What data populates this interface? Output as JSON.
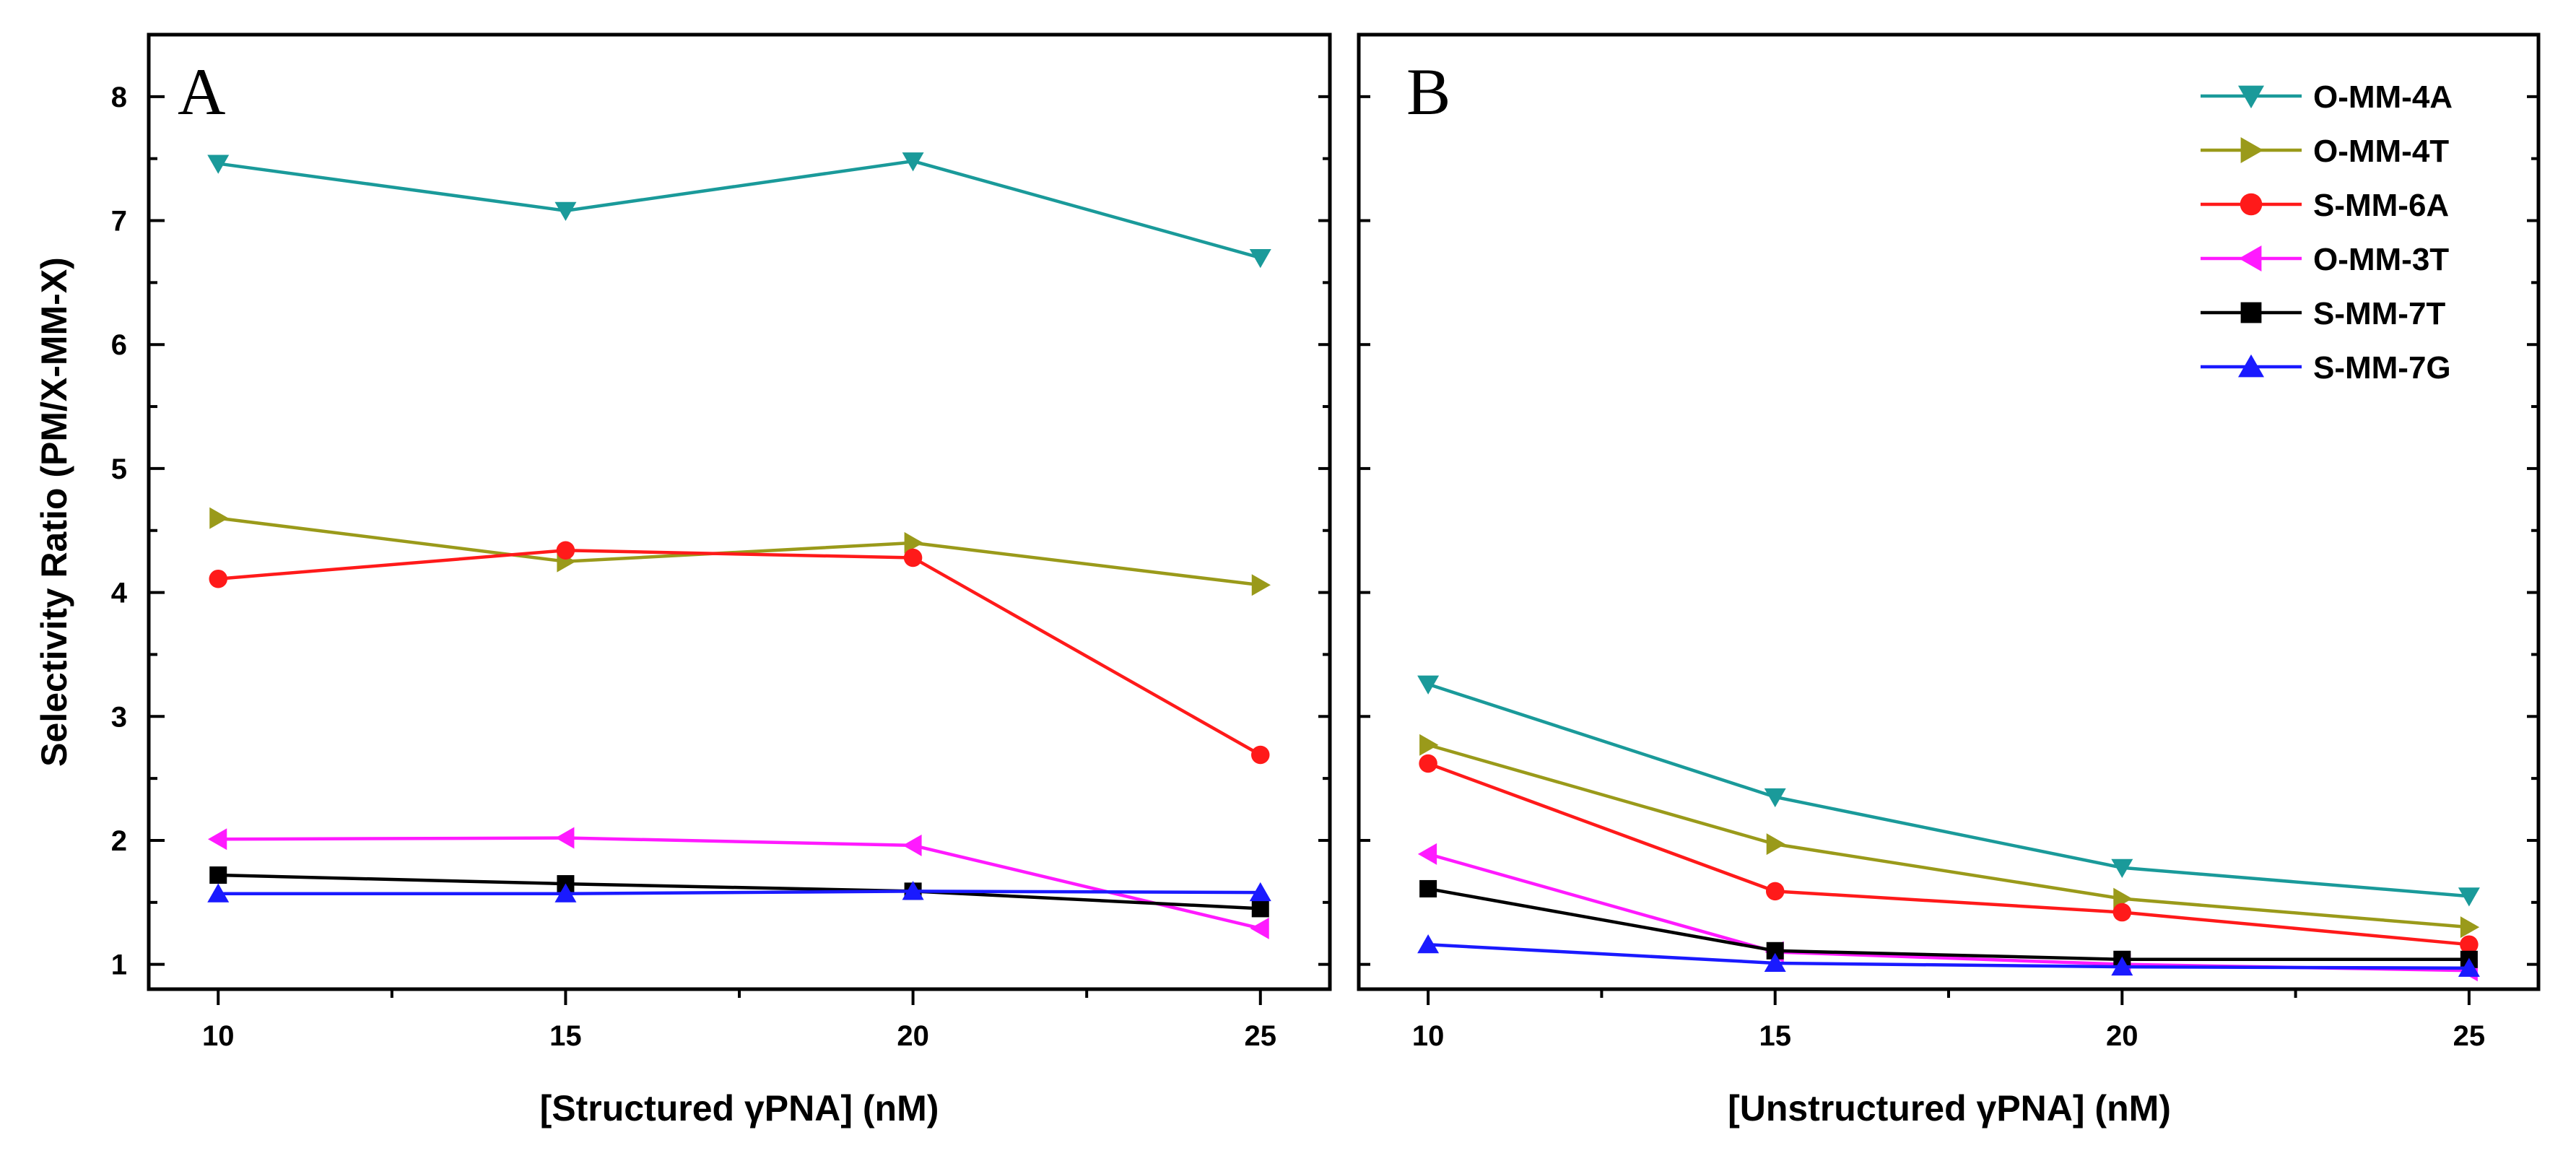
{
  "chart_data": {
    "type": "line",
    "ylabel": "Selectivity Ratio (PM/X-MM-X)",
    "ylim": [
      0.8,
      8.5
    ],
    "yticks": [
      1,
      2,
      3,
      4,
      5,
      6,
      7,
      8
    ],
    "legend_position": "top-right of panel B",
    "panels": [
      {
        "letter": "A",
        "xlabel": "[Structured γPNA] (nM)",
        "xlim": [
          9,
          26
        ],
        "xticks": [
          10,
          15,
          20,
          25
        ],
        "x": [
          10,
          15,
          20,
          25
        ],
        "series": [
          {
            "name": "O-MM-4A",
            "color": "#1a9a9a",
            "marker": "triangle-down",
            "values": [
              7.46,
              7.08,
              7.48,
              6.7
            ]
          },
          {
            "name": "O-MM-4T",
            "color": "#9a9a1a",
            "marker": "triangle-right",
            "values": [
              4.6,
              4.25,
              4.4,
              4.06
            ]
          },
          {
            "name": "S-MM-6A",
            "color": "#ff1a1a",
            "marker": "circle",
            "values": [
              4.11,
              4.34,
              4.28,
              2.69
            ]
          },
          {
            "name": "O-MM-3T",
            "color": "#ff1aff",
            "marker": "triangle-left",
            "values": [
              2.01,
              2.02,
              1.96,
              1.29
            ]
          },
          {
            "name": "S-MM-7T",
            "color": "#000000",
            "marker": "square",
            "values": [
              1.72,
              1.65,
              1.59,
              1.45
            ]
          },
          {
            "name": "S-MM-7G",
            "color": "#1a1aff",
            "marker": "triangle-up",
            "values": [
              1.57,
              1.57,
              1.59,
              1.58
            ]
          }
        ]
      },
      {
        "letter": "B",
        "xlabel": "[Unstructured γPNA] (nM)",
        "xlim": [
          9,
          26
        ],
        "xticks": [
          10,
          15,
          20,
          25
        ],
        "x": [
          10,
          15,
          20,
          25
        ],
        "series": [
          {
            "name": "O-MM-4A",
            "color": "#1a9a9a",
            "marker": "triangle-down",
            "values": [
              3.26,
              2.35,
              1.78,
              1.55
            ]
          },
          {
            "name": "O-MM-4T",
            "color": "#9a9a1a",
            "marker": "triangle-right",
            "values": [
              2.77,
              1.97,
              1.53,
              1.3
            ]
          },
          {
            "name": "S-MM-6A",
            "color": "#ff1a1a",
            "marker": "circle",
            "values": [
              2.62,
              1.59,
              1.42,
              1.16
            ]
          },
          {
            "name": "O-MM-3T",
            "color": "#ff1aff",
            "marker": "triangle-left",
            "values": [
              1.89,
              1.1,
              1.0,
              0.95
            ]
          },
          {
            "name": "S-MM-7T",
            "color": "#000000",
            "marker": "square",
            "values": [
              1.61,
              1.11,
              1.04,
              1.04
            ]
          },
          {
            "name": "S-MM-7G",
            "color": "#1a1aff",
            "marker": "triangle-up",
            "values": [
              1.16,
              1.01,
              0.98,
              0.97
            ]
          }
        ]
      }
    ]
  }
}
